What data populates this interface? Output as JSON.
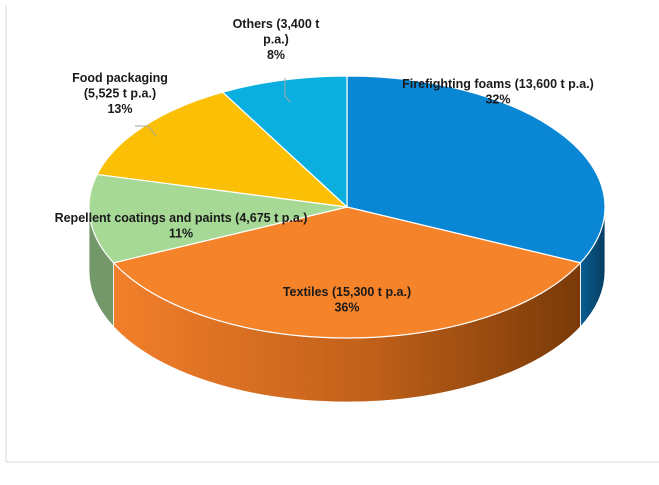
{
  "chart_data": {
    "type": "pie",
    "three_d": true,
    "title": "",
    "unit": "t p.a.",
    "slices": [
      {
        "label": "Firefighting foams",
        "value": 13600,
        "percent": 32,
        "label_text": "Firefighting foams (13,600 t p.a.)",
        "percent_text": "32%",
        "color": "#0a87d4"
      },
      {
        "label": "Textiles",
        "value": 15300,
        "percent": 36,
        "label_text": "Textiles (15,300 t p.a.)",
        "percent_text": "36%",
        "color": "#f5832a"
      },
      {
        "label": "Repellent coatings and paints",
        "value": 4675,
        "percent": 11,
        "label_text": "Repellent coatings and paints (4,675 t p.a.)",
        "percent_text": "11%",
        "color": "#a6d996"
      },
      {
        "label": "Food packaging",
        "value": 5525,
        "percent": 13,
        "label_text_lines": [
          "Food packaging",
          "(5,525 t p.a.)"
        ],
        "percent_text": "13%",
        "color": "#fbbf05"
      },
      {
        "label": "Others",
        "value": 3400,
        "percent": 8,
        "label_text_lines": [
          "Others (3,400 t",
          "p.a.)"
        ],
        "percent_text": "8%",
        "color": "#0aafe0"
      }
    ],
    "legend": "none",
    "grid": false
  }
}
